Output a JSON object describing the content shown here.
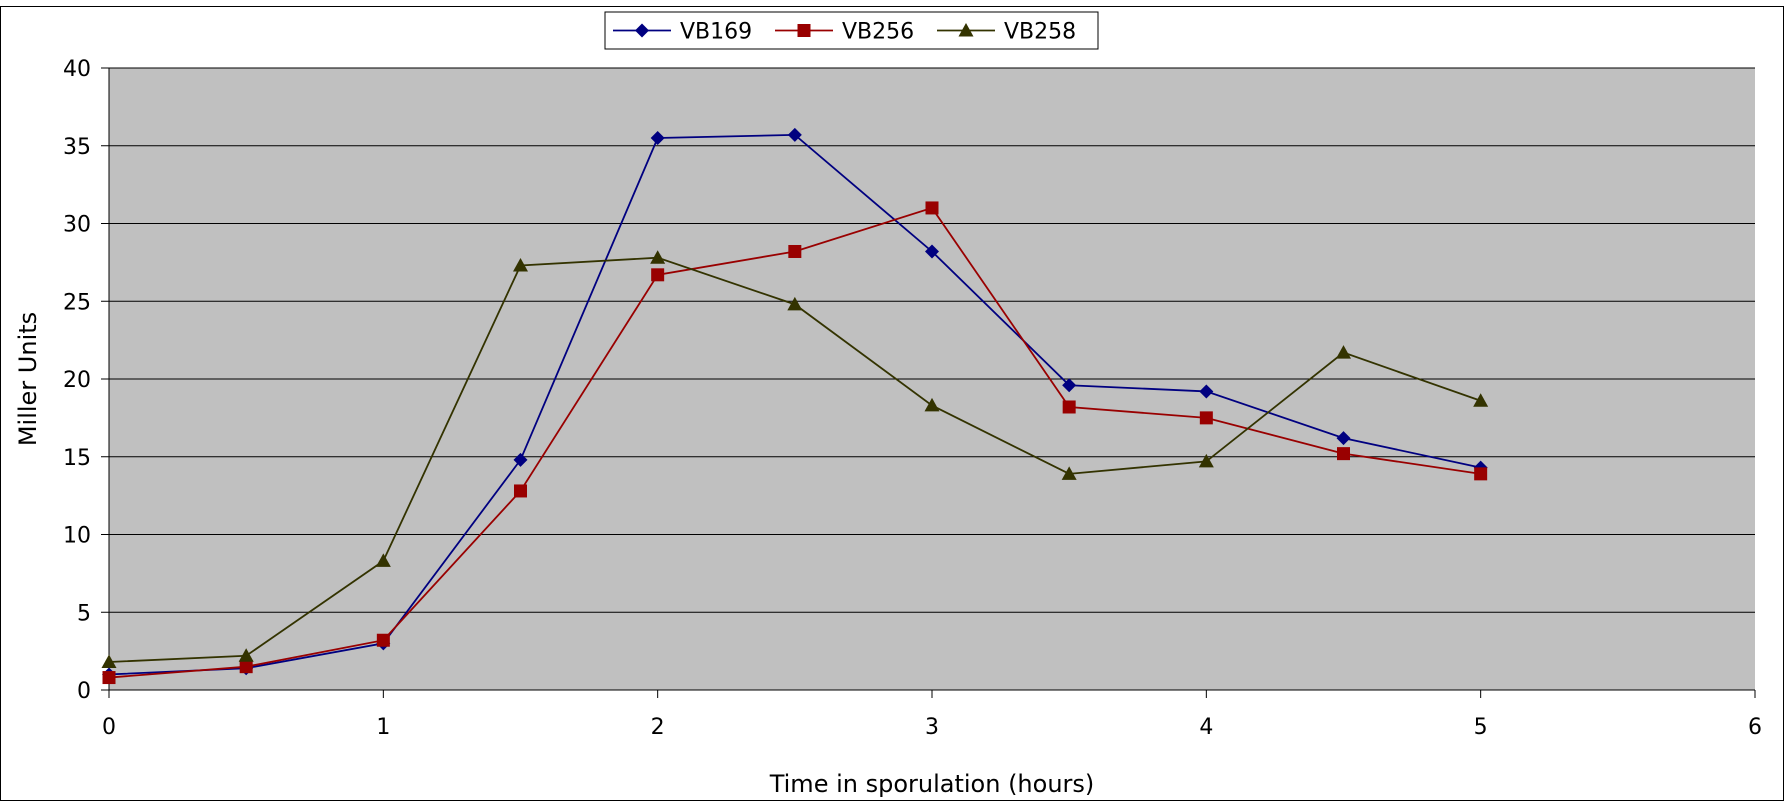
{
  "chart_data": {
    "type": "line",
    "title": "",
    "xlabel": "Time in sporulation (hours)",
    "ylabel": "Miller Units",
    "xlim": [
      0,
      6
    ],
    "ylim": [
      0,
      40
    ],
    "xticks": [
      0,
      1,
      2,
      3,
      4,
      5,
      6
    ],
    "yticks": [
      0,
      5,
      10,
      15,
      20,
      25,
      30,
      35,
      40
    ],
    "grid": "horizontal",
    "legend_position": "top-center",
    "plot_background": "#c0c0c0",
    "series": [
      {
        "name": "VB169",
        "color": "#000080",
        "marker": "diamond",
        "x": [
          0,
          0.5,
          1,
          1.5,
          2,
          2.5,
          3,
          3.5,
          4,
          4.5,
          5
        ],
        "y": [
          1.0,
          1.4,
          3.0,
          14.8,
          35.5,
          35.7,
          28.2,
          19.6,
          19.2,
          16.2,
          14.3
        ]
      },
      {
        "name": "VB256",
        "color": "#990000",
        "marker": "square",
        "x": [
          0,
          0.5,
          1,
          1.5,
          2,
          2.5,
          3,
          3.5,
          4,
          4.5,
          5
        ],
        "y": [
          0.8,
          1.5,
          3.2,
          12.8,
          26.7,
          28.2,
          31.0,
          18.2,
          17.5,
          15.2,
          13.9
        ]
      },
      {
        "name": "VB258",
        "color": "#333300",
        "marker": "triangle",
        "x": [
          0,
          0.5,
          1,
          1.5,
          2,
          2.5,
          3,
          3.5,
          4,
          4.5,
          5
        ],
        "y": [
          1.8,
          2.2,
          8.3,
          27.3,
          27.8,
          24.8,
          18.3,
          13.9,
          14.7,
          21.7,
          18.6
        ]
      }
    ]
  }
}
